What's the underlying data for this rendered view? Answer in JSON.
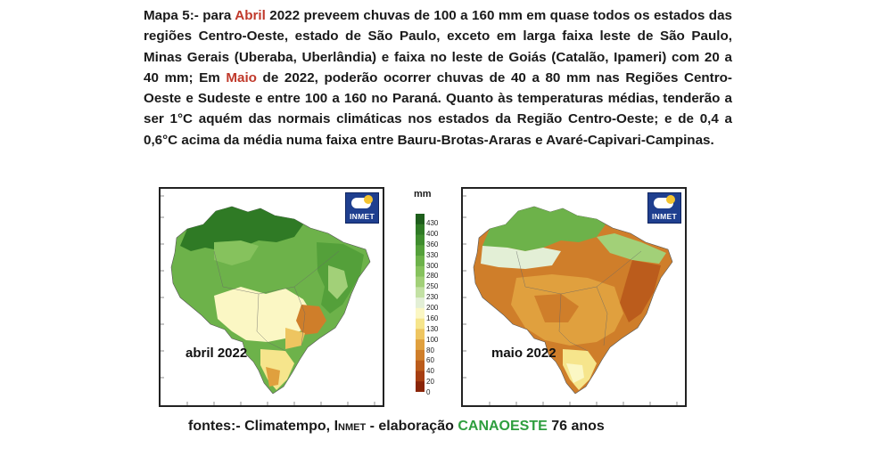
{
  "paragraph": {
    "lead": "Mapa 5:-",
    "text1": " para ",
    "month1": "Abril",
    "text2": " 2022 preveem chuvas de 100 a 160 mm em quase todos os estados das regiões Centro-Oeste, estado de São Paulo, exceto em larga faixa leste de São Paulo, Minas Gerais (Uberaba, Uberlândia) e faixa no leste de Goiás (Catalão, Ipameri) com 20 a 40 mm; Em ",
    "month2": "Maio",
    "text3": " de 2022, poderão ocorrer chuvas de 40 a 80 mm nas Regiões Centro-Oeste e Sudeste e entre 100 a 160 no Paraná. Quanto às temperaturas médias, tenderão a ser 1°C aquém das normais climáticas nos estados da Região Centro-Oeste; e de 0,4 a 0,6°C acima da média numa faixa entre Bauru-Brotas-Araras e Avaré-Capivari-Campinas.",
    "highlight_color": "#c0392b"
  },
  "maps": {
    "left_label": "abril 2022",
    "right_label": "maio 2022",
    "badge_text": "INMET"
  },
  "scale": {
    "unit": "mm",
    "ticks": [
      "430",
      "400",
      "360",
      "330",
      "300",
      "280",
      "250",
      "230",
      "200",
      "160",
      "130",
      "100",
      "80",
      "60",
      "40",
      "20",
      "0"
    ],
    "colors": [
      "#1e5e1c",
      "#2f7a25",
      "#3f8d2e",
      "#54a03a",
      "#6db24a",
      "#86c25d",
      "#a2d078",
      "#c3e1a4",
      "#e3efd6",
      "#fbf7c4",
      "#f6e58c",
      "#eec560",
      "#e0a03e",
      "#cf7e2a",
      "#bb5c1c",
      "#a63e12",
      "#8a2508"
    ]
  },
  "footer": {
    "prefix": "fontes:- Climatempo, ",
    "inmet": "Inmet",
    "middle": " - elaboração ",
    "brand": "CANAOESTE",
    "suffix": " 76 anos",
    "brand_color": "#2e9e3e"
  }
}
